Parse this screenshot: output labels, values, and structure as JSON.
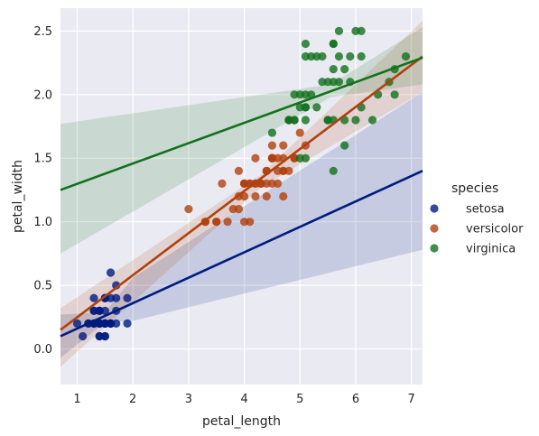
{
  "chart_data": {
    "type": "scatter",
    "xlabel": "petal_length",
    "ylabel": "petal_width",
    "xlim": [
      0.7,
      7.2
    ],
    "ylim": [
      -0.28,
      2.68
    ],
    "xticks": [
      "1",
      "2",
      "3",
      "4",
      "5",
      "6",
      "7"
    ],
    "yticks": [
      "0.0",
      "0.5",
      "1.0",
      "1.5",
      "2.0",
      "2.5"
    ],
    "grid": true,
    "legend": {
      "title": "species",
      "placement": "right"
    },
    "series": [
      {
        "name": "setosa",
        "color": "#001c7f",
        "points": [
          [
            1.4,
            0.2
          ],
          [
            1.4,
            0.2
          ],
          [
            1.3,
            0.2
          ],
          [
            1.5,
            0.2
          ],
          [
            1.4,
            0.2
          ],
          [
            1.7,
            0.4
          ],
          [
            1.4,
            0.3
          ],
          [
            1.5,
            0.2
          ],
          [
            1.4,
            0.2
          ],
          [
            1.5,
            0.1
          ],
          [
            1.5,
            0.2
          ],
          [
            1.6,
            0.2
          ],
          [
            1.4,
            0.1
          ],
          [
            1.1,
            0.1
          ],
          [
            1.2,
            0.2
          ],
          [
            1.5,
            0.4
          ],
          [
            1.3,
            0.4
          ],
          [
            1.4,
            0.3
          ],
          [
            1.7,
            0.3
          ],
          [
            1.5,
            0.3
          ],
          [
            1.7,
            0.2
          ],
          [
            1.5,
            0.4
          ],
          [
            1.0,
            0.2
          ],
          [
            1.7,
            0.5
          ],
          [
            1.9,
            0.2
          ],
          [
            1.6,
            0.2
          ],
          [
            1.6,
            0.4
          ],
          [
            1.5,
            0.2
          ],
          [
            1.4,
            0.2
          ],
          [
            1.6,
            0.2
          ],
          [
            1.6,
            0.2
          ],
          [
            1.5,
            0.4
          ],
          [
            1.5,
            0.1
          ],
          [
            1.4,
            0.2
          ],
          [
            1.5,
            0.2
          ],
          [
            1.2,
            0.2
          ],
          [
            1.3,
            0.2
          ],
          [
            1.4,
            0.1
          ],
          [
            1.3,
            0.2
          ],
          [
            1.5,
            0.2
          ],
          [
            1.3,
            0.3
          ],
          [
            1.3,
            0.3
          ],
          [
            1.3,
            0.2
          ],
          [
            1.6,
            0.6
          ],
          [
            1.9,
            0.4
          ],
          [
            1.4,
            0.3
          ],
          [
            1.6,
            0.2
          ],
          [
            1.4,
            0.2
          ],
          [
            1.5,
            0.2
          ],
          [
            1.4,
            0.2
          ]
        ],
        "fit": {
          "x": [
            0.7,
            7.2
          ],
          "y": [
            0.1,
            1.4
          ]
        },
        "ci": {
          "x": [
            0.7,
            1.5,
            2.0,
            7.2
          ],
          "upper": [
            0.27,
            0.29,
            0.56,
            2.02
          ],
          "lower": [
            -0.07,
            0.21,
            0.22,
            0.78
          ]
        }
      },
      {
        "name": "versicolor",
        "color": "#b1400d",
        "points": [
          [
            4.7,
            1.4
          ],
          [
            4.5,
            1.5
          ],
          [
            4.9,
            1.5
          ],
          [
            4.0,
            1.3
          ],
          [
            4.6,
            1.5
          ],
          [
            4.5,
            1.3
          ],
          [
            4.7,
            1.6
          ],
          [
            3.3,
            1.0
          ],
          [
            4.6,
            1.3
          ],
          [
            3.9,
            1.4
          ],
          [
            3.5,
            1.0
          ],
          [
            4.2,
            1.5
          ],
          [
            4.0,
            1.0
          ],
          [
            4.7,
            1.4
          ],
          [
            3.6,
            1.3
          ],
          [
            4.4,
            1.4
          ],
          [
            4.5,
            1.5
          ],
          [
            4.1,
            1.0
          ],
          [
            4.5,
            1.5
          ],
          [
            3.9,
            1.1
          ],
          [
            4.8,
            1.8
          ],
          [
            4.0,
            1.3
          ],
          [
            4.9,
            1.5
          ],
          [
            4.7,
            1.2
          ],
          [
            4.3,
            1.3
          ],
          [
            4.4,
            1.4
          ],
          [
            4.8,
            1.4
          ],
          [
            5.0,
            1.7
          ],
          [
            4.5,
            1.5
          ],
          [
            3.5,
            1.0
          ],
          [
            3.8,
            1.1
          ],
          [
            3.7,
            1.0
          ],
          [
            3.9,
            1.2
          ],
          [
            5.1,
            1.6
          ],
          [
            4.5,
            1.5
          ],
          [
            4.5,
            1.6
          ],
          [
            4.7,
            1.5
          ],
          [
            4.4,
            1.3
          ],
          [
            4.1,
            1.3
          ],
          [
            4.0,
            1.3
          ],
          [
            4.4,
            1.2
          ],
          [
            4.6,
            1.4
          ],
          [
            4.0,
            1.2
          ],
          [
            3.3,
            1.0
          ],
          [
            4.2,
            1.3
          ],
          [
            4.2,
            1.2
          ],
          [
            4.2,
            1.3
          ],
          [
            4.3,
            1.3
          ],
          [
            3.0,
            1.1
          ],
          [
            4.1,
            1.3
          ]
        ],
        "fit": {
          "x": [
            0.7,
            7.2
          ],
          "y": [
            0.15,
            2.3
          ]
        },
        "ci": {
          "x": [
            0.7,
            4.3,
            7.2
          ],
          "upper": [
            0.32,
            1.37,
            2.58
          ],
          "lower": [
            -0.14,
            1.27,
            2.02
          ]
        }
      },
      {
        "name": "virginica",
        "color": "#12711c",
        "points": [
          [
            6.0,
            2.5
          ],
          [
            5.1,
            1.9
          ],
          [
            5.9,
            2.1
          ],
          [
            5.6,
            1.8
          ],
          [
            5.8,
            2.2
          ],
          [
            6.6,
            2.1
          ],
          [
            4.5,
            1.7
          ],
          [
            6.3,
            1.8
          ],
          [
            5.8,
            1.8
          ],
          [
            6.1,
            2.5
          ],
          [
            5.1,
            2.0
          ],
          [
            5.3,
            1.9
          ],
          [
            5.5,
            2.1
          ],
          [
            5.0,
            2.0
          ],
          [
            5.1,
            2.4
          ],
          [
            5.3,
            2.3
          ],
          [
            5.5,
            1.8
          ],
          [
            6.7,
            2.2
          ],
          [
            6.9,
            2.3
          ],
          [
            5.0,
            1.5
          ],
          [
            5.7,
            2.3
          ],
          [
            4.9,
            2.0
          ],
          [
            6.7,
            2.0
          ],
          [
            4.9,
            1.8
          ],
          [
            5.7,
            2.1
          ],
          [
            6.0,
            1.8
          ],
          [
            4.8,
            1.8
          ],
          [
            4.9,
            1.8
          ],
          [
            5.6,
            2.1
          ],
          [
            5.8,
            1.6
          ],
          [
            6.1,
            1.9
          ],
          [
            6.4,
            2.0
          ],
          [
            5.6,
            2.2
          ],
          [
            5.1,
            1.5
          ],
          [
            5.6,
            1.4
          ],
          [
            6.1,
            2.3
          ],
          [
            5.6,
            2.4
          ],
          [
            5.5,
            1.8
          ],
          [
            4.8,
            1.8
          ],
          [
            5.4,
            2.1
          ],
          [
            5.6,
            2.4
          ],
          [
            5.1,
            2.3
          ],
          [
            5.1,
            1.9
          ],
          [
            5.9,
            2.3
          ],
          [
            5.7,
            2.5
          ],
          [
            5.2,
            2.3
          ],
          [
            5.0,
            1.9
          ],
          [
            5.2,
            2.0
          ],
          [
            5.4,
            2.3
          ],
          [
            5.1,
            1.8
          ]
        ],
        "fit": {
          "x": [
            0.7,
            7.2
          ],
          "y": [
            1.25,
            2.29
          ]
        },
        "ci": {
          "x": [
            0.7,
            5.55,
            7.2
          ],
          "upper": [
            1.77,
            2.08,
            2.53
          ],
          "lower": [
            0.75,
            1.98,
            2.08
          ]
        }
      }
    ]
  }
}
